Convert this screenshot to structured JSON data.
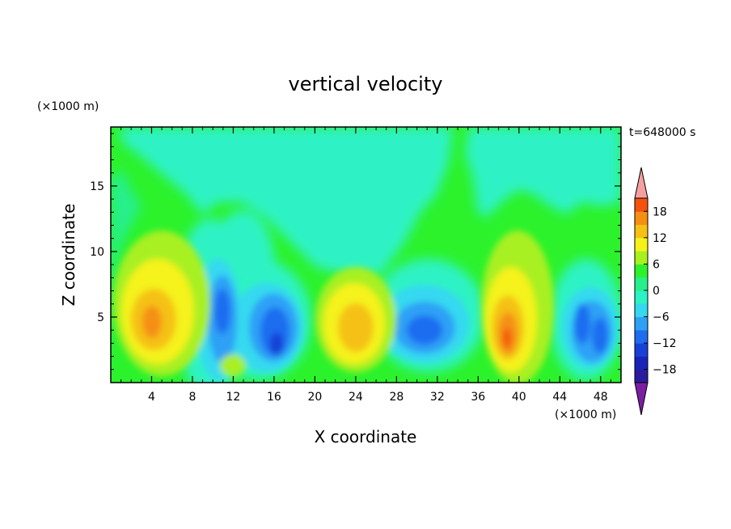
{
  "chart_data": {
    "type": "heatmap",
    "subtype": "filled-contour",
    "title": "vertical velocity",
    "xlabel": "X coordinate",
    "ylabel": "Z coordinate",
    "x_unit": "(×1000 m)",
    "y_unit": "(×1000 m)",
    "time_label": "t=648000 s",
    "xlim": [
      0,
      50
    ],
    "ylim": [
      0,
      19.5
    ],
    "x_ticks": [
      4,
      8,
      12,
      16,
      20,
      24,
      28,
      32,
      36,
      40,
      44,
      48
    ],
    "x_tick_labels": [
      "4",
      "8",
      "12",
      "16",
      "20",
      "24",
      "28",
      "32",
      "36",
      "40",
      "44",
      "48"
    ],
    "y_ticks": [
      5,
      10,
      15
    ],
    "y_tick_labels": [
      "5",
      "10",
      "15"
    ],
    "colorbar": {
      "levels": [
        -21,
        -18,
        -15,
        -12,
        -9,
        -6,
        -3,
        0,
        3,
        6,
        9,
        12,
        15,
        18,
        21
      ],
      "colors": [
        "#7b1fa2",
        "#2c1b9e",
        "#1a23b8",
        "#1741d6",
        "#1e6df0",
        "#2fa0f6",
        "#34d9f0",
        "#2df2c5",
        "#27ef8b",
        "#2cf22c",
        "#a8f020",
        "#f5f21a",
        "#f5c116",
        "#f58f12",
        "#f55210",
        "#e2231a",
        "#f5a0a0"
      ],
      "tick_values": [
        18,
        12,
        6,
        0,
        -6,
        -12,
        -18
      ],
      "tick_labels": [
        "18",
        "12",
        "6",
        "0",
        "−6",
        "−12",
        "−18"
      ]
    },
    "features": [
      {
        "sign": "up",
        "x": 4.5,
        "z": 4.5,
        "peak": 12
      },
      {
        "sign": "down",
        "x": 10.5,
        "z": 5.5,
        "peak": -12
      },
      {
        "sign": "down",
        "x": 16,
        "z": 3.5,
        "peak": -12
      },
      {
        "sign": "up",
        "x": 24.5,
        "z": 4.0,
        "peak": 9
      },
      {
        "sign": "down",
        "x": 31,
        "z": 4.0,
        "peak": -12
      },
      {
        "sign": "up",
        "x": 38.8,
        "z": 3.8,
        "peak": 15
      },
      {
        "sign": "down",
        "x": 45.5,
        "z": 4.5,
        "peak": -12
      },
      {
        "sign": "down",
        "x": 48,
        "z": 3.5,
        "peak": -12
      }
    ]
  }
}
